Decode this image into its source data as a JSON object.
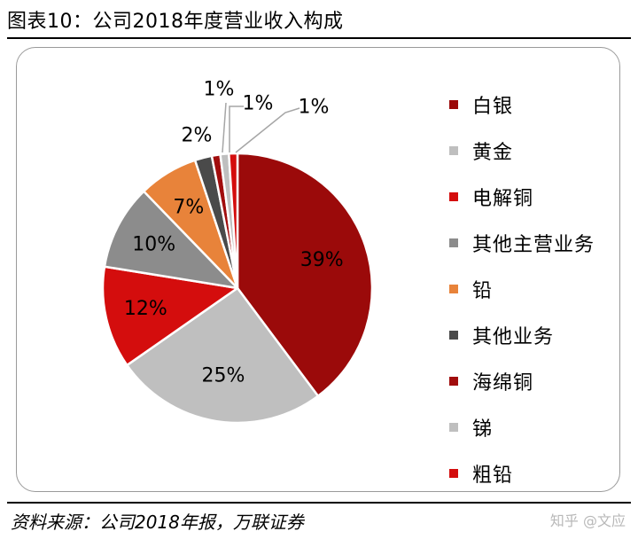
{
  "header": {
    "title": "图表10：公司2018年度营业收入构成"
  },
  "footer": {
    "source": "资料来源：公司2018年报，万联证券",
    "watermark": "知乎 @文应"
  },
  "chart_data": {
    "type": "pie",
    "title": "图表10：公司2018年度营业收入构成",
    "legend_position": "right",
    "start": "12 o'clock, clockwise",
    "slices": [
      {
        "label": "白银",
        "value": 39,
        "display": "39%",
        "color": "#9b0a0a"
      },
      {
        "label": "黄金",
        "value": 25,
        "display": "25%",
        "color": "#bfbfbf"
      },
      {
        "label": "电解铜",
        "value": 12,
        "display": "12%",
        "color": "#d40d0d"
      },
      {
        "label": "其他主营业务",
        "value": 10,
        "display": "10%",
        "color": "#8c8c8c"
      },
      {
        "label": "铅",
        "value": 7,
        "display": "7%",
        "color": "#e8833a"
      },
      {
        "label": "其他业务",
        "value": 2,
        "display": "2%",
        "color": "#4a4a4a"
      },
      {
        "label": "海绵铜",
        "value": 1,
        "display": "1%",
        "color": "#a10d0d"
      },
      {
        "label": "锑",
        "value": 1,
        "display": "1%",
        "color": "#bfbfbf"
      },
      {
        "label": "粗铅",
        "value": 1,
        "display": "1%",
        "color": "#d40d0d"
      }
    ]
  }
}
